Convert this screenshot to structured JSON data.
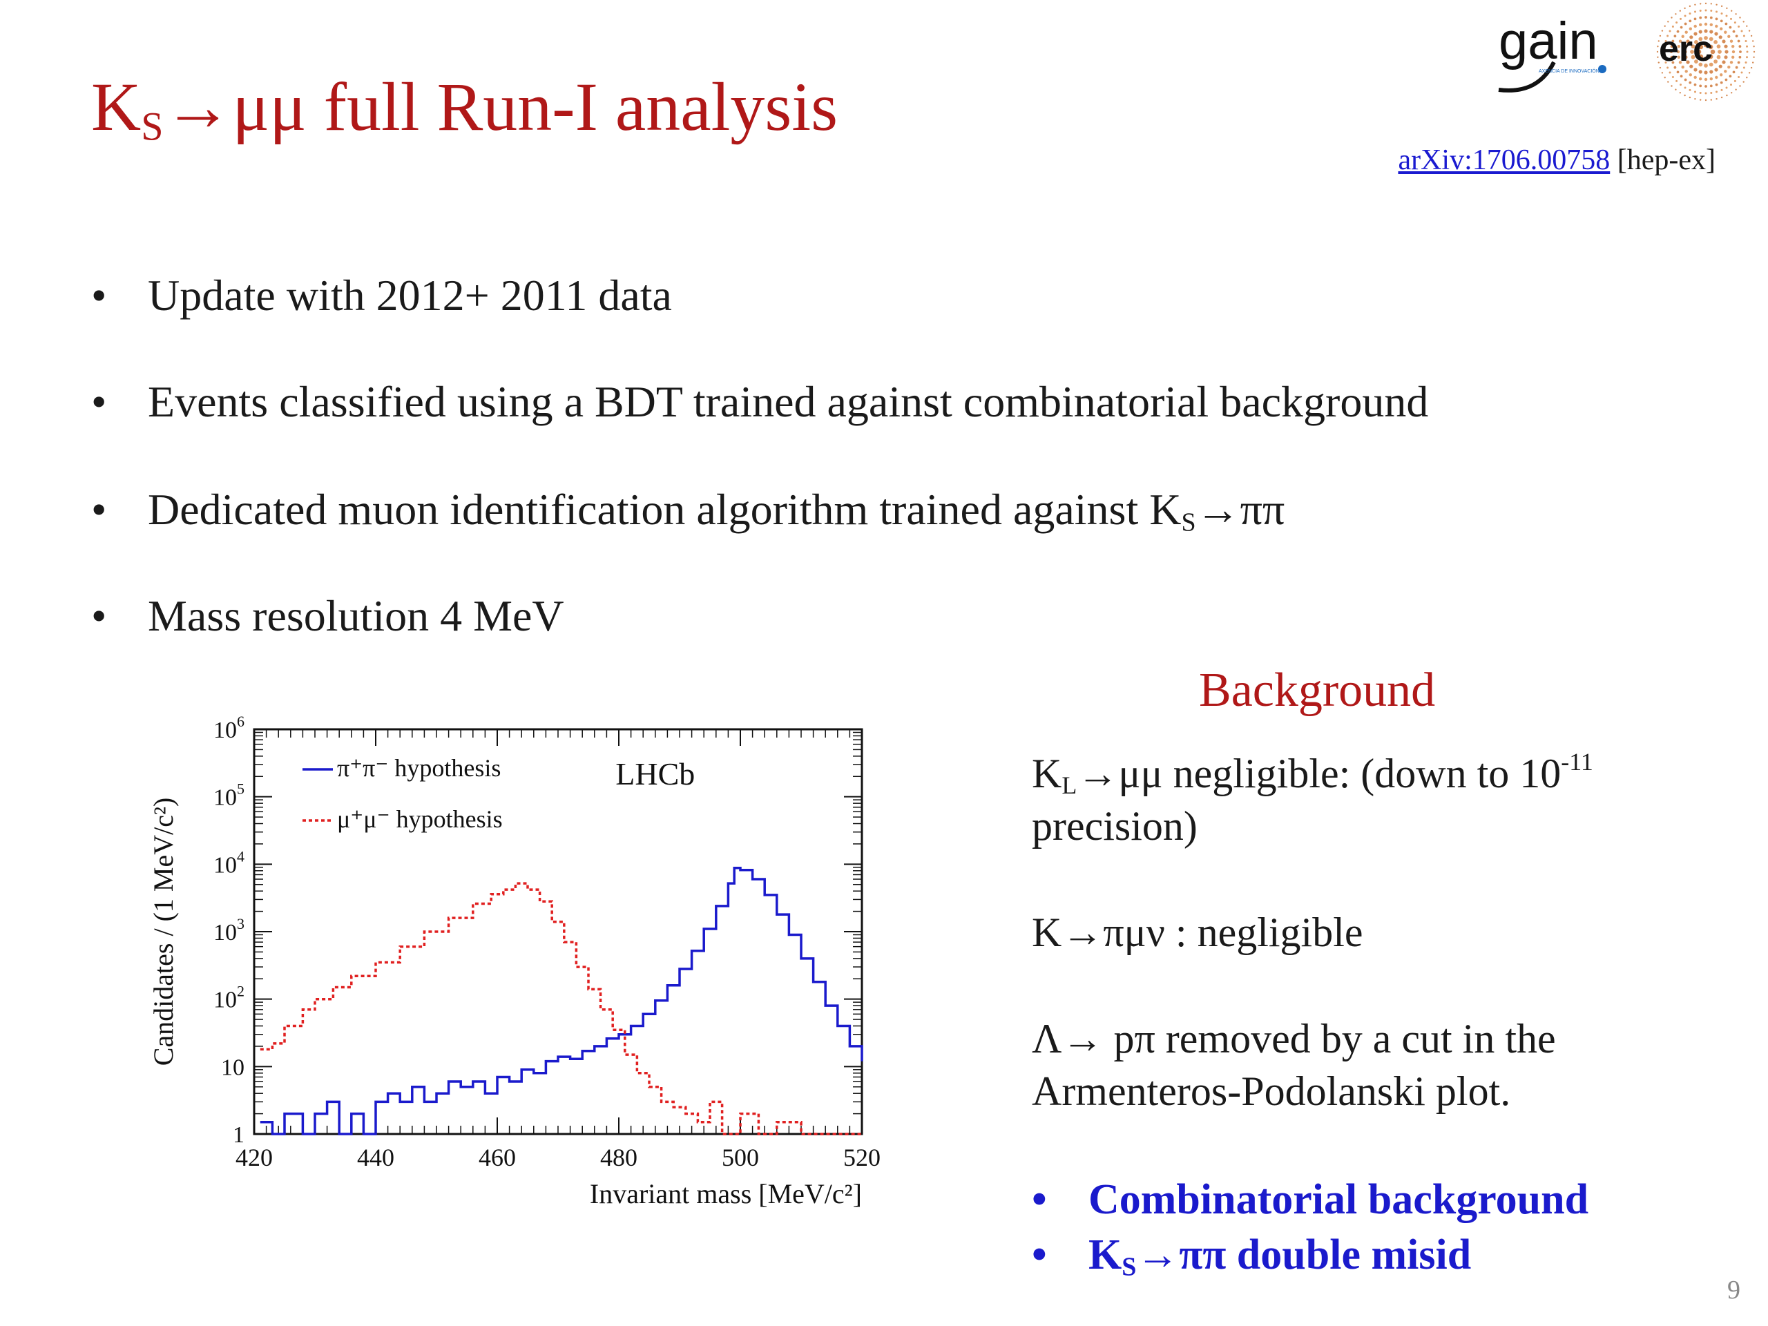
{
  "title": {
    "main": "K",
    "sub": "S",
    "rest": "→μμ full Run-I analysis"
  },
  "reference": {
    "link": "arXiv:1706.00758",
    "tag": " [hep-ex]"
  },
  "bullets": [
    {
      "text": "Update with 2012+ 2011 data"
    },
    {
      "text": "Events classified using a BDT trained against combinatorial background"
    },
    {
      "pre": "Dedicated muon identification algorithm trained against K",
      "sub": "S",
      "post": "→ππ"
    },
    {
      "text": "Mass resolution 4 MeV"
    }
  ],
  "background": {
    "heading": "Background",
    "kl": {
      "k": "K",
      "sub": "L",
      "mid": "→μμ negligible: (down to 10",
      "sup": "-11",
      "end": " precision)"
    },
    "kpimu": "K→πμν : negligible",
    "lambda": "Λ→ pπ removed by a cut in the Armenteros-Podolanski plot.",
    "blue_items": [
      {
        "text": "Combinatorial background"
      },
      {
        "pre": "K",
        "sub": "S",
        "post": "→ππ double misid"
      }
    ],
    "bullet_symbol": "•"
  },
  "page_number": "9",
  "logo": {
    "gain": "gain",
    "erc": "erc",
    "small_text": "AXENCIA DE INNOVACIÓN"
  },
  "colors": {
    "title": "#b01818",
    "link": "#1a1ad0",
    "blue_items": "#1a1acc",
    "series_pipi": "#1a1acc",
    "series_mumu": "#e02020"
  },
  "chart_data": {
    "type": "line",
    "step": true,
    "xlabel": "Invariant mass [MeV/c²]",
    "ylabel": "Candidates / (1 MeV/c²)",
    "annotation": "LHCb",
    "x_ticks": [
      "420",
      "440",
      "460",
      "480",
      "500",
      "520"
    ],
    "xlim": [
      420,
      520
    ],
    "ylog": true,
    "ylim": [
      1,
      1000000
    ],
    "y_ticks": [
      {
        "value": 1,
        "base": "1",
        "exp": ""
      },
      {
        "value": 10,
        "base": "10",
        "exp": ""
      },
      {
        "value": 100,
        "base": "10",
        "exp": "2"
      },
      {
        "value": 1000,
        "base": "10",
        "exp": "3"
      },
      {
        "value": 10000,
        "base": "10",
        "exp": "4"
      },
      {
        "value": 100000,
        "base": "10",
        "exp": "5"
      },
      {
        "value": 1000000,
        "base": "10",
        "exp": "6"
      }
    ],
    "legend_position": "top-left",
    "series": [
      {
        "name": "π⁺π⁻ hypothesis",
        "color": "#1a1acc",
        "dashed": false,
        "x": [
          421,
          423,
          425,
          428,
          430,
          432,
          434,
          436,
          438,
          440,
          442,
          444,
          446,
          448,
          450,
          452,
          454,
          456,
          458,
          460,
          462,
          464,
          466,
          468,
          470,
          472,
          474,
          476,
          478,
          480,
          482,
          484,
          486,
          488,
          490,
          492,
          494,
          496,
          498,
          499,
          500,
          502,
          504,
          506,
          508,
          510,
          512,
          514,
          516,
          518,
          520
        ],
        "y": [
          1.5,
          1,
          2,
          1,
          2,
          3,
          1,
          2,
          1,
          3,
          4,
          3,
          5,
          3,
          4,
          6,
          5,
          6,
          4,
          7,
          6,
          9,
          8,
          12,
          14,
          13,
          17,
          20,
          26,
          30,
          40,
          60,
          95,
          160,
          280,
          520,
          1100,
          2400,
          5200,
          8800,
          8200,
          6000,
          3500,
          1800,
          900,
          400,
          180,
          80,
          40,
          20,
          12
        ]
      },
      {
        "name": "μ⁺μ⁻ hypothesis",
        "color": "#e02020",
        "dashed": true,
        "x": [
          421,
          423,
          425,
          428,
          430,
          433,
          436,
          440,
          444,
          448,
          452,
          456,
          459,
          461,
          463,
          465,
          467,
          469,
          471,
          473,
          475,
          477,
          479,
          481,
          483,
          485,
          487,
          489,
          491,
          493,
          495,
          497,
          500,
          503,
          506,
          510,
          514,
          517,
          520
        ],
        "y": [
          18,
          22,
          40,
          70,
          100,
          150,
          220,
          350,
          600,
          1000,
          1600,
          2600,
          3600,
          4200,
          5200,
          4200,
          2800,
          1400,
          700,
          300,
          140,
          70,
          35,
          15,
          8,
          5,
          3,
          2.5,
          2,
          1.5,
          3,
          1,
          2,
          1,
          1.5,
          1,
          1,
          1,
          1
        ]
      }
    ]
  }
}
